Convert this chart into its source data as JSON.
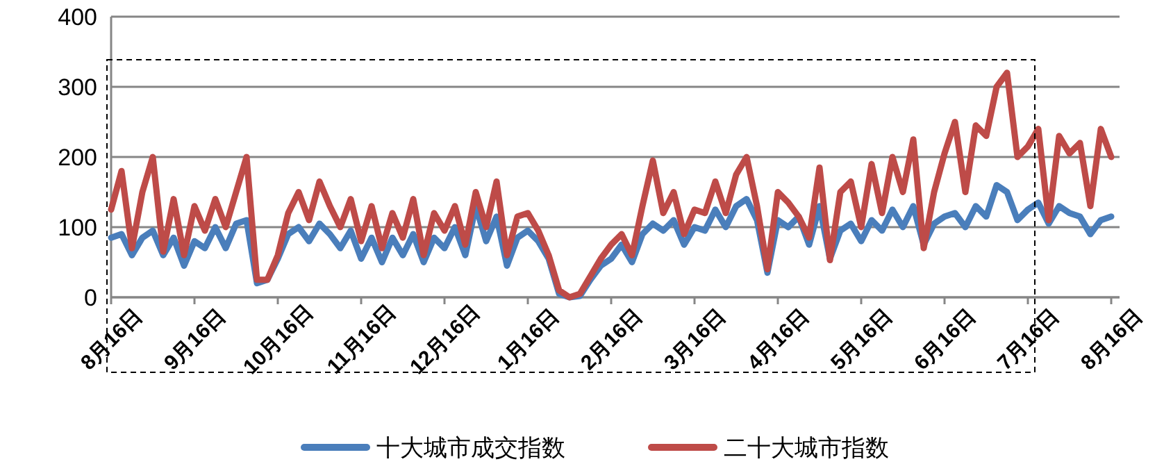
{
  "chart_data": {
    "type": "line",
    "categories": [
      "8月16日",
      null,
      null,
      null,
      null,
      null,
      null,
      null,
      "9月16日",
      null,
      null,
      null,
      null,
      null,
      null,
      null,
      "10月16日",
      null,
      null,
      null,
      null,
      null,
      null,
      null,
      "11月16日",
      null,
      null,
      null,
      null,
      null,
      null,
      null,
      "12月16日",
      null,
      null,
      null,
      null,
      null,
      null,
      null,
      "1月16日",
      null,
      null,
      null,
      null,
      null,
      null,
      null,
      "2月16日",
      null,
      null,
      null,
      null,
      null,
      null,
      null,
      "3月16日",
      null,
      null,
      null,
      null,
      null,
      null,
      null,
      "4月16日",
      null,
      null,
      null,
      null,
      null,
      null,
      null,
      "5月16日",
      null,
      null,
      null,
      null,
      null,
      null,
      null,
      "6月16日",
      null,
      null,
      null,
      null,
      null,
      null,
      null,
      "7月16日",
      null,
      null,
      null,
      null,
      null,
      null,
      null,
      "8月16日"
    ],
    "series": [
      {
        "name": "十大城市成交指数",
        "color": "#4a7ebb",
        "values": [
          85,
          90,
          60,
          85,
          95,
          60,
          85,
          45,
          80,
          70,
          100,
          70,
          105,
          110,
          20,
          25,
          55,
          90,
          100,
          80,
          105,
          90,
          70,
          95,
          55,
          85,
          50,
          85,
          60,
          90,
          50,
          85,
          70,
          100,
          60,
          130,
          80,
          115,
          45,
          85,
          95,
          80,
          55,
          5,
          0,
          2,
          25,
          45,
          55,
          75,
          50,
          90,
          105,
          95,
          110,
          75,
          100,
          95,
          125,
          100,
          130,
          140,
          110,
          35,
          110,
          100,
          115,
          75,
          130,
          55,
          95,
          105,
          80,
          110,
          95,
          125,
          100,
          130,
          75,
          105,
          115,
          120,
          100,
          130,
          115,
          160,
          150,
          110,
          125,
          135,
          105,
          130,
          120,
          115,
          90,
          110,
          115
        ]
      },
      {
        "name": "二十大城市指数",
        "color": "#be4b48",
        "values": [
          125,
          180,
          70,
          150,
          200,
          65,
          140,
          60,
          130,
          95,
          140,
          100,
          150,
          200,
          25,
          25,
          60,
          120,
          150,
          110,
          165,
          130,
          100,
          140,
          80,
          130,
          70,
          120,
          85,
          140,
          60,
          120,
          95,
          130,
          75,
          150,
          100,
          165,
          60,
          115,
          120,
          95,
          60,
          10,
          0,
          5,
          30,
          55,
          75,
          90,
          60,
          130,
          195,
          120,
          150,
          90,
          125,
          120,
          165,
          120,
          175,
          200,
          130,
          40,
          150,
          135,
          115,
          85,
          185,
          53,
          150,
          165,
          100,
          190,
          120,
          200,
          150,
          225,
          70,
          150,
          205,
          250,
          150,
          245,
          230,
          300,
          320,
          200,
          215,
          240,
          110,
          230,
          205,
          220,
          130,
          240,
          200
        ]
      }
    ],
    "ylim": [
      0,
      400
    ],
    "yticks": [
      0,
      100,
      200,
      300,
      400
    ],
    "grid": "y",
    "legend": "bottom",
    "line_style": "solid",
    "marker": "none"
  }
}
